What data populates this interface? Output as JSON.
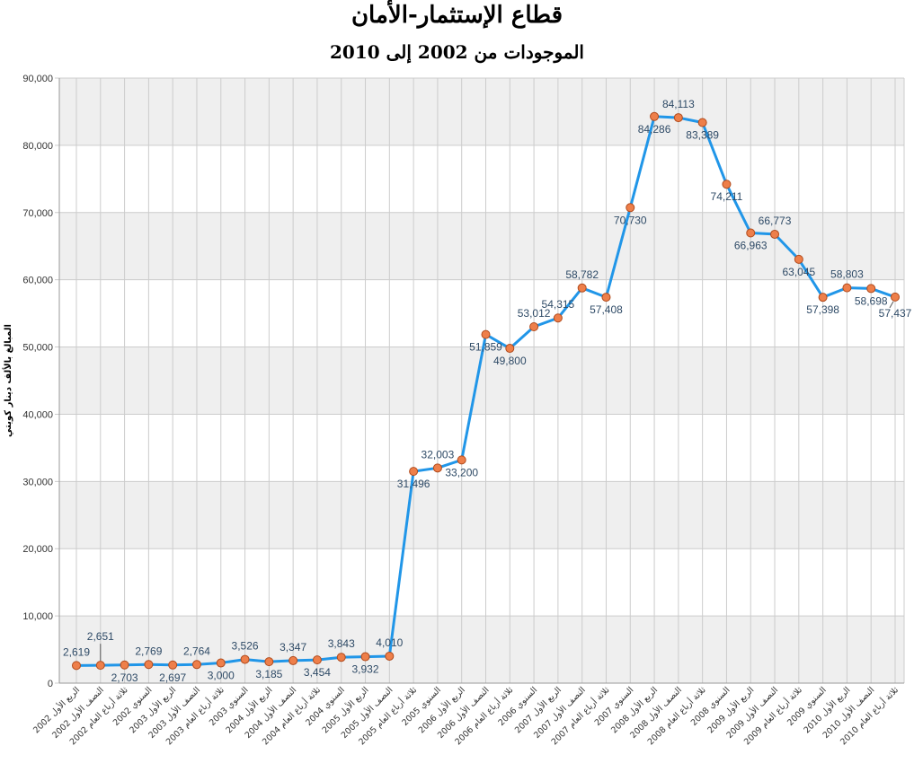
{
  "chart_data": {
    "type": "line",
    "title": "قطاع الإستثمار-الأمان",
    "subtitle": "الموجودات من 2002 إلى 2010",
    "ylabel": "المبالغ بالألف دينار كويتي",
    "xlabel": "",
    "ylim": [
      0,
      90000
    ],
    "yticks": [
      "0",
      "10,000",
      "20,000",
      "30,000",
      "40,000",
      "50,000",
      "60,000",
      "70,000",
      "80,000",
      "90,000"
    ],
    "ytick_values": [
      0,
      10000,
      20000,
      30000,
      40000,
      50000,
      60000,
      70000,
      80000,
      90000
    ],
    "grid": true,
    "categories": [
      "الربع الأول 2002",
      "النصف الأول 2002",
      "ثلاثة أرباع العام 2002",
      "السنوي 2002",
      "الربع الأول 2003",
      "النصف الأول 2003",
      "ثلاثة أرباع العام 2003",
      "السنوي 2003",
      "الربع الأول 2004",
      "النصف الأول 2004",
      "ثلاثة أرباع العام 2004",
      "السنوي 2004",
      "الربع الأول 2005",
      "النصف الأول 2005",
      "ثلاثة أرباع العام 2005",
      "السنوي 2005",
      "الربع الأول 2006",
      "النصف الأول 2006",
      "ثلاثة أرباع العام 2006",
      "السنوي 2006",
      "الربع الأول 2007",
      "النصف الأول 2007",
      "ثلاثة أرباع العام 2007",
      "السنوي 2007",
      "الربع الأول 2008",
      "النصف الأول 2008",
      "ثلاثة أرباع العام 2008",
      "السنوي 2008",
      "الربع الأول 2009",
      "النصف الأول 2009",
      "ثلاثة أرباع العام 2009",
      "السنوي 2009",
      "الربع الأول 2010",
      "النصف الأول 2010",
      "ثلاثة أرباع العام 2010"
    ],
    "values": [
      2619,
      2651,
      2703,
      2769,
      2697,
      2764,
      3000,
      3526,
      3185,
      3347,
      3454,
      3843,
      3932,
      4010,
      31496,
      32003,
      33200,
      51859,
      49800,
      53012,
      54315,
      58782,
      57408,
      70730,
      84286,
      84113,
      83389,
      74211,
      66963,
      66773,
      63045,
      57398,
      58803,
      58698,
      57437
    ],
    "data_labels": [
      "2,619",
      "2,651",
      "2,703",
      "2,769",
      "2,697",
      "2,764",
      "3,000",
      "3,526",
      "3,185",
      "3,347",
      "3,454",
      "3,843",
      "3,932",
      "4,010",
      "31,496",
      "32,003",
      "33,200",
      "51,859",
      "49,800",
      "53,012",
      "54,315",
      "58,782",
      "57,408",
      "70,730",
      "84,286",
      "84,113",
      "83,389",
      "74,211",
      "66,963",
      "66,773",
      "63,045",
      "57,398",
      "58,803",
      "58,698",
      "57,437"
    ],
    "colors": {
      "line": "#2196e8",
      "marker_fill": "#ee7f4a",
      "marker_stroke": "#b04a1c",
      "band": "#efefef",
      "grid": "#cccccc"
    }
  }
}
